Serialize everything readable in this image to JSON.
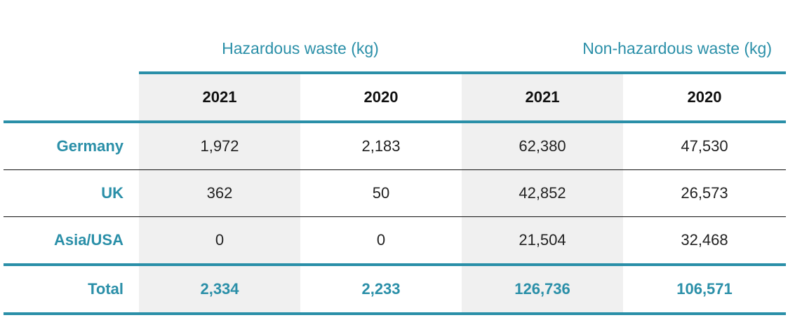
{
  "groups": [
    "Hazardous waste (kg)",
    "Non-hazardous waste (kg)"
  ],
  "table": {
    "columns": [
      "2021",
      "2020",
      "2021",
      "2020"
    ],
    "rows": [
      {
        "label": "Germany",
        "values": [
          "1,972",
          "2,183",
          "62,380",
          "47,530"
        ]
      },
      {
        "label": "UK",
        "values": [
          "362",
          "50",
          "42,852",
          "26,573"
        ]
      },
      {
        "label": "Asia/USA",
        "values": [
          "0",
          "0",
          "21,504",
          "32,468"
        ]
      }
    ],
    "total": {
      "label": "Total",
      "values": [
        "2,334",
        "2,233",
        "126,736",
        "106,571"
      ]
    }
  }
}
